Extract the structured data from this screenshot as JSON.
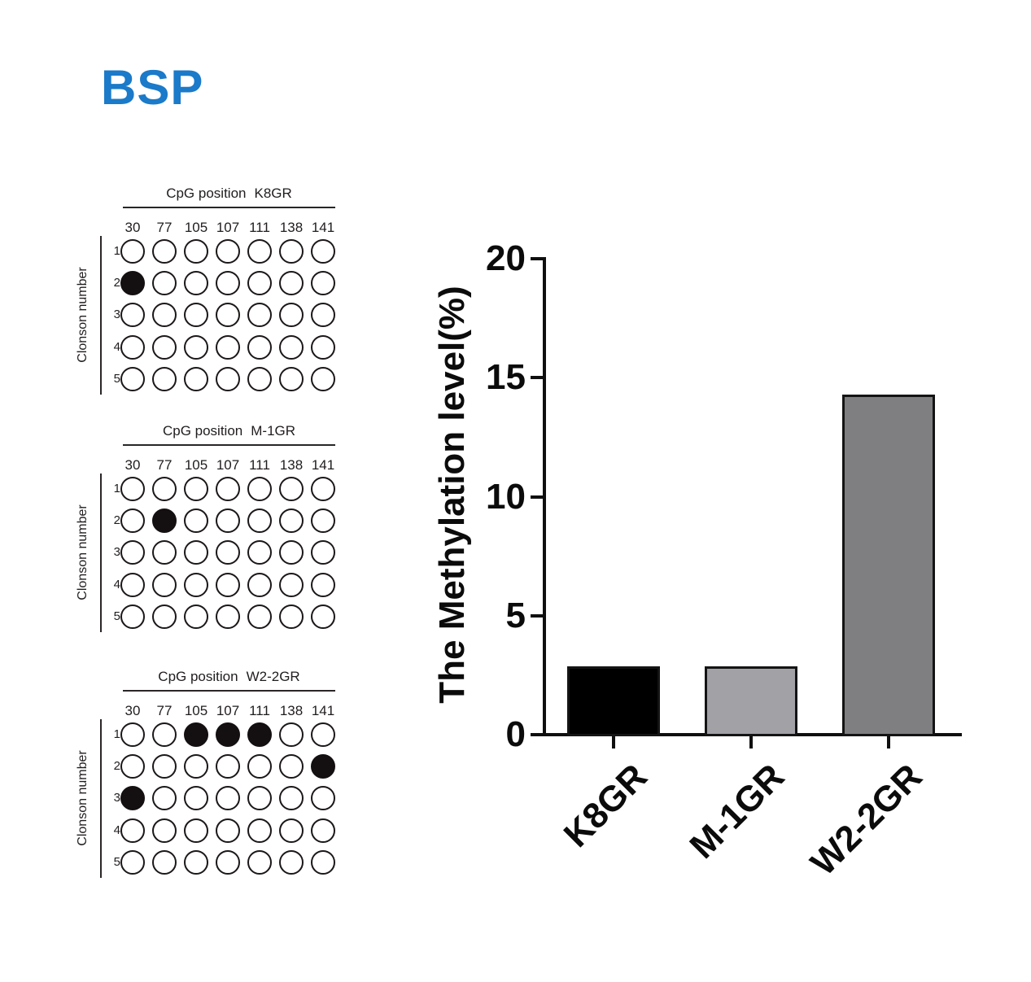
{
  "figure_title": {
    "text": "BSP",
    "color": "#1b7ac9"
  },
  "panels": [
    {
      "title_prefix": "CpG position",
      "name": "K8GR",
      "cpg_positions": [
        "30",
        "77",
        "105",
        "107",
        "111",
        "138",
        "141"
      ],
      "clone_labels": [
        "1",
        "2",
        "3",
        "4",
        "5"
      ],
      "axis_label": "Clonson number",
      "filled_cells": [
        [
          1,
          0
        ]
      ]
    },
    {
      "title_prefix": "CpG position",
      "name": "M-1GR",
      "cpg_positions": [
        "30",
        "77",
        "105",
        "107",
        "111",
        "138",
        "141"
      ],
      "clone_labels": [
        "1",
        "2",
        "3",
        "4",
        "5"
      ],
      "axis_label": "Clonson number",
      "filled_cells": [
        [
          1,
          1
        ]
      ]
    },
    {
      "title_prefix": "CpG position",
      "name": "W2-2GR",
      "cpg_positions": [
        "30",
        "77",
        "105",
        "107",
        "111",
        "138",
        "141"
      ],
      "clone_labels": [
        "1",
        "2",
        "3",
        "4",
        "5"
      ],
      "axis_label": "Clonson number",
      "filled_cells": [
        [
          0,
          2
        ],
        [
          0,
          3
        ],
        [
          0,
          4
        ],
        [
          1,
          6
        ],
        [
          2,
          0
        ]
      ]
    }
  ],
  "chart_data": {
    "type": "bar",
    "categories": [
      "K8GR",
      "M-1GR",
      "W2-2GR"
    ],
    "values": [
      2.86,
      2.86,
      14.29
    ],
    "title": "",
    "xlabel": "",
    "ylabel": "The Methylation level(%)",
    "ylim": [
      0,
      20
    ],
    "yticks": [
      0,
      5,
      10,
      15,
      20
    ],
    "grid": false,
    "legend": false,
    "bar_colors": [
      "#000000",
      "#a2a1a6",
      "#7f7f82"
    ],
    "bar_border_color": "#141414"
  }
}
